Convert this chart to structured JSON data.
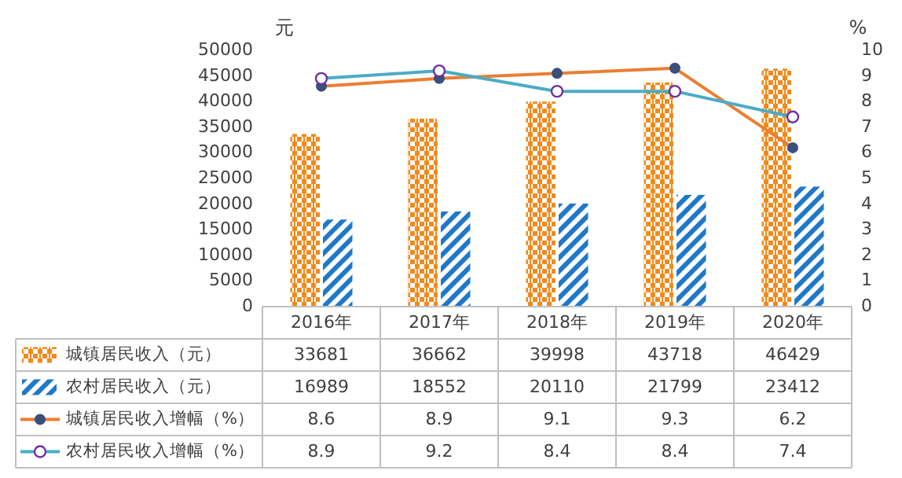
{
  "chart_data": {
    "type": "bar",
    "categories": [
      "2016年",
      "2017年",
      "2018年",
      "2019年",
      "2020年"
    ],
    "series": [
      {
        "name": "城镇居民收入（元）",
        "color": "#f08a1c",
        "values": [
          33681,
          36662,
          39998,
          43718,
          46429
        ]
      },
      {
        "name": "农村居民收入（元）",
        "color": "#1f78c8",
        "values": [
          16989,
          18552,
          20110,
          21799,
          23412
        ]
      },
      {
        "name": "城镇居民收入增幅（%）",
        "type": "line",
        "axis": "y2",
        "color": "#ed7d31",
        "marker": "circle",
        "values": [
          8.6,
          8.9,
          9.1,
          9.3,
          6.2
        ]
      },
      {
        "name": "农村居民收入增幅（%）",
        "type": "line",
        "axis": "y2",
        "color": "#4bacc6",
        "marker": "circle",
        "values": [
          8.9,
          9.2,
          8.4,
          8.4,
          7.4
        ]
      }
    ],
    "ylabel": "元",
    "y2label": "%",
    "ylim": [
      0,
      50000
    ],
    "yticks": [
      0,
      5000,
      10000,
      15000,
      20000,
      25000,
      30000,
      35000,
      40000,
      45000,
      50000
    ],
    "y2lim": [
      0,
      10
    ],
    "y2ticks": [
      0,
      1,
      2,
      3,
      4,
      5,
      6,
      7,
      8,
      9,
      10
    ],
    "data_labels": true,
    "legend": "bottom"
  }
}
